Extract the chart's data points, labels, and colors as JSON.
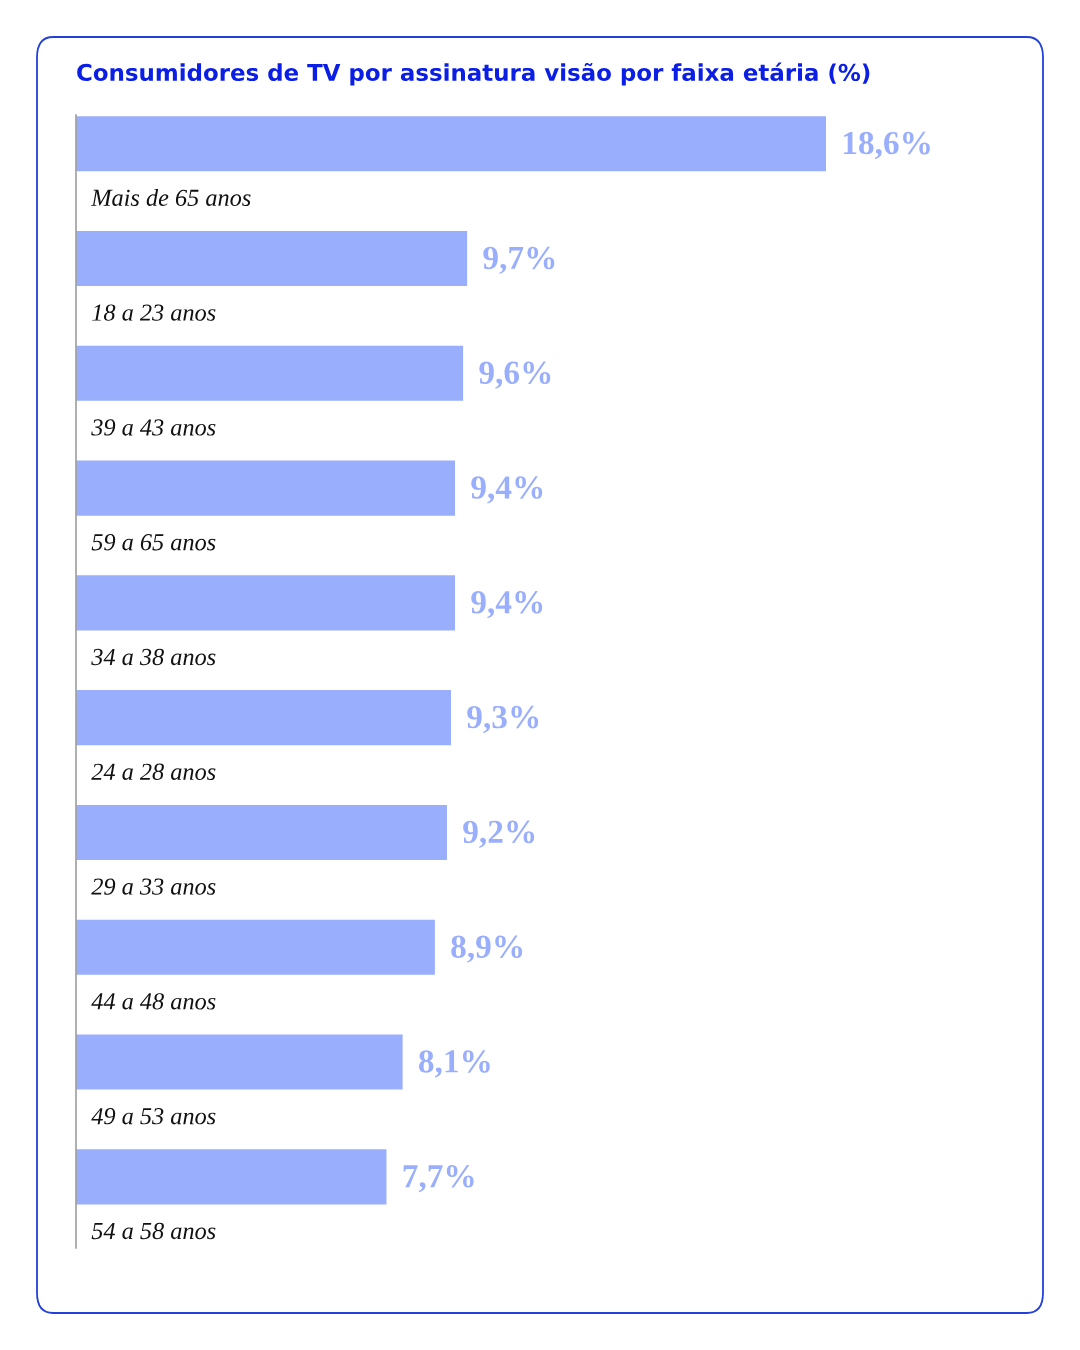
{
  "chart_data": {
    "type": "bar",
    "orientation": "horizontal",
    "title": "Consumidores de TV por assinatura visão por faixa etária (%)",
    "categories": [
      "Mais de 65 anos",
      "18 a 23 anos",
      "39 a 43 anos",
      "59 a 65 anos",
      "34 a 38 anos",
      "24 a 28 anos",
      "29 a 33 anos",
      "44 a 48 anos",
      "49 a 53 anos",
      "54 a 58 anos"
    ],
    "values": [
      18.6,
      9.7,
      9.6,
      9.4,
      9.4,
      9.3,
      9.2,
      8.9,
      8.1,
      7.7
    ],
    "value_labels": [
      "18,6%",
      "9,7%",
      "9,6%",
      "9,4%",
      "9,4%",
      "9,3%",
      "9,2%",
      "8,9%",
      "8,1%",
      "7,7%"
    ],
    "color": "#99aefd",
    "tick_labels": "y"
  }
}
